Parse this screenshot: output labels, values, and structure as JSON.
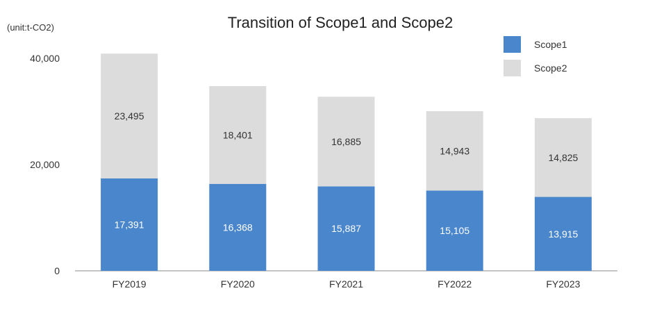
{
  "chart_data": {
    "type": "bar",
    "stacked": true,
    "title": "Transition of Scope1 and Scope2",
    "unit_label": "(unit:t-CO2)",
    "categories": [
      "FY2019",
      "FY2020",
      "FY2021",
      "FY2022",
      "FY2023"
    ],
    "series": [
      {
        "name": "Scope1",
        "color": "#4A86CC",
        "values": [
          17391,
          16368,
          15887,
          15105,
          13915
        ],
        "labels": [
          "17,391",
          "16,368",
          "15,887",
          "15,105",
          "13,915"
        ]
      },
      {
        "name": "Scope2",
        "color": "#DCDCDC",
        "values": [
          23495,
          18401,
          16885,
          14943,
          14825
        ],
        "labels": [
          "23,495",
          "18,401",
          "16,885",
          "14,943",
          "14,825"
        ]
      }
    ],
    "yticks": [
      {
        "value": 0,
        "label": "0"
      },
      {
        "value": 20000,
        "label": "20,000"
      },
      {
        "value": 40000,
        "label": "40,000"
      }
    ],
    "ylim": [
      0,
      40000
    ],
    "grid": false,
    "legend_position": "top-right"
  }
}
